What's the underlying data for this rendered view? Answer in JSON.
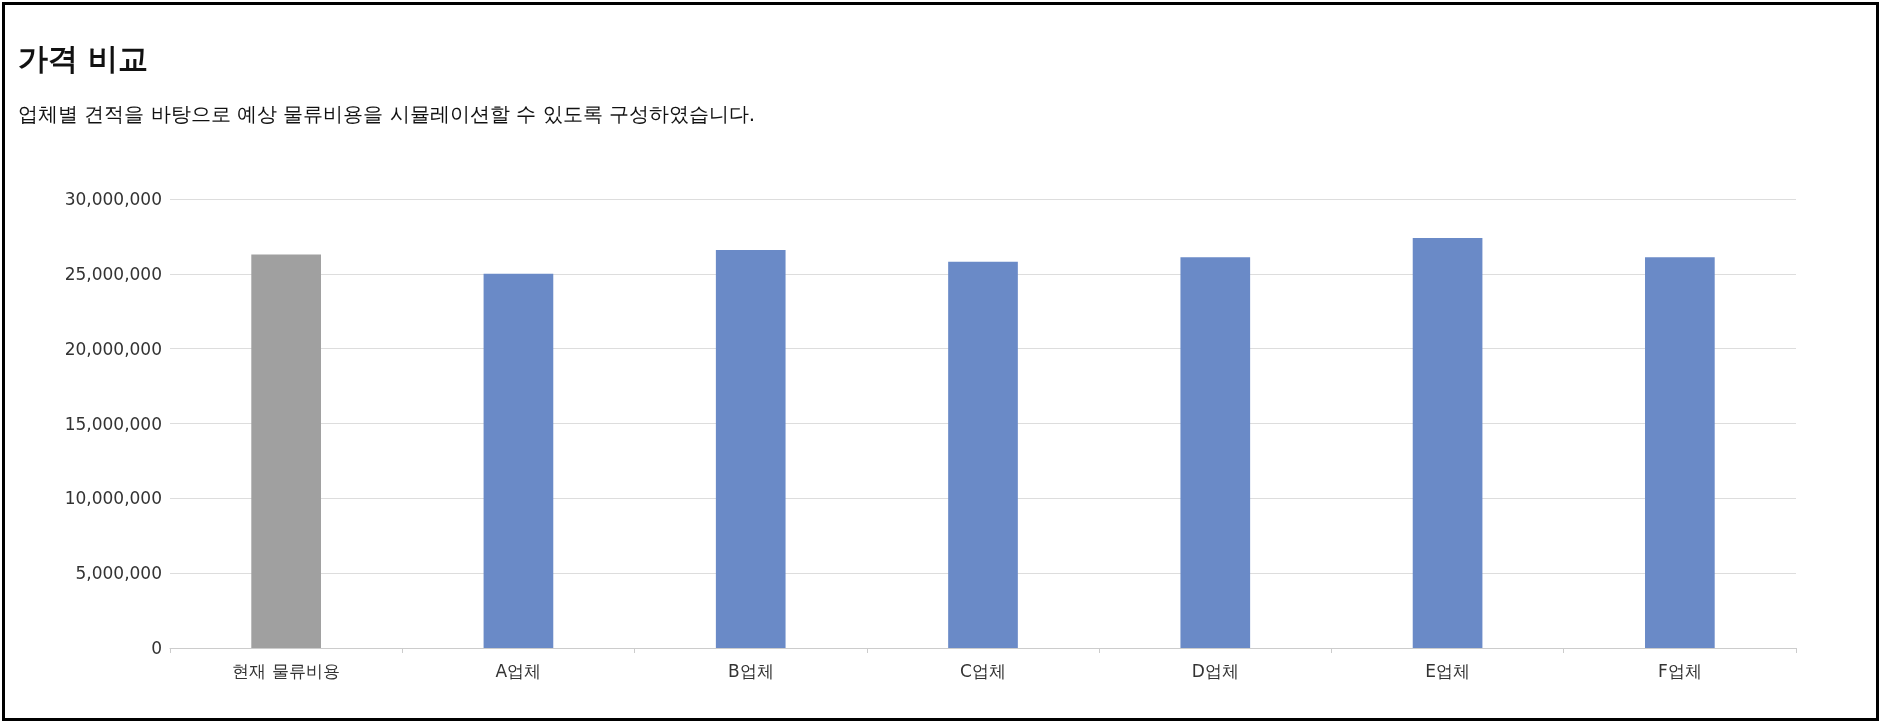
{
  "chart_data": {
    "type": "bar",
    "title": "가격 비교",
    "subtitle": "업체별 견적을 바탕으로 예상 물류비용을 시뮬레이션할 수 있도록 구성하였습니다.",
    "categories": [
      "현재 물류비용",
      "A업체",
      "B업체",
      "C업체",
      "D업체",
      "E업체",
      "F업체"
    ],
    "values": [
      26300000,
      25000000,
      26600000,
      25800000,
      26100000,
      27400000,
      26100000
    ],
    "colors": [
      "#a0a0a0",
      "#6a8ac7",
      "#6a8ac7",
      "#6a8ac7",
      "#6a8ac7",
      "#6a8ac7",
      "#6a8ac7"
    ],
    "ylim": [
      0,
      30000000
    ],
    "yticks": [
      0,
      {
        "value": 5000000,
        "label": "5,000,000"
      },
      {
        "value": 10000000,
        "label": "10,000,000"
      },
      {
        "value": 15000000,
        "label": "15,000,000"
      },
      {
        "value": 20000000,
        "label": "20,000,000"
      },
      {
        "value": 25000000,
        "label": "25,000,000"
      },
      {
        "value": 30000000,
        "label": "30,000,000"
      }
    ],
    "grid": "y"
  }
}
